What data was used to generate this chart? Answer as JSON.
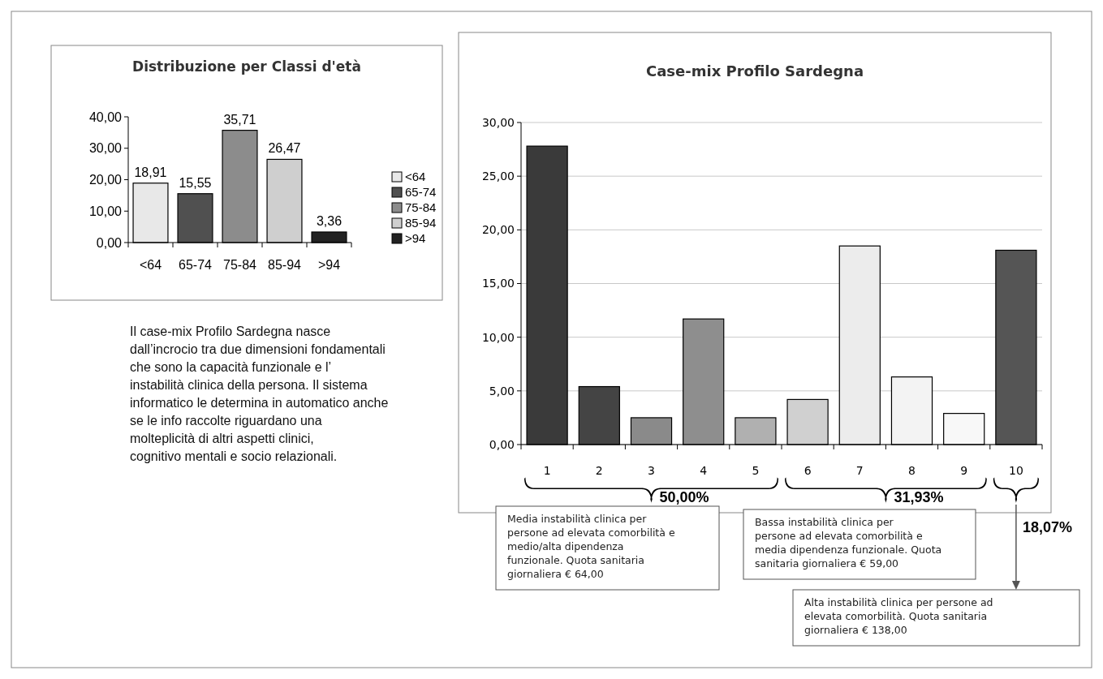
{
  "chart_data": [
    {
      "type": "bar",
      "title": "Distribuzione per Classi d'età",
      "categories": [
        "<64",
        "65-74",
        "75-84",
        "85-94",
        ">94"
      ],
      "series": [
        {
          "name": "<64",
          "color": "#e8e8e8",
          "values": [
            18.91,
            null,
            null,
            null,
            null
          ],
          "value_labels": [
            "18,91",
            null,
            null,
            null,
            null
          ]
        },
        {
          "name": "65-74",
          "color": "#505050",
          "values": [
            null,
            15.55,
            null,
            null,
            null
          ],
          "value_labels": [
            null,
            "15,55",
            null,
            null,
            null
          ]
        },
        {
          "name": "75-84",
          "color": "#8c8c8c",
          "values": [
            null,
            null,
            35.71,
            null,
            null
          ],
          "value_labels": [
            null,
            null,
            "35,71",
            null,
            null
          ]
        },
        {
          "name": "85-94",
          "color": "#cfcfcf",
          "values": [
            null,
            null,
            null,
            26.47,
            null
          ],
          "value_labels": [
            null,
            null,
            null,
            "26,47",
            null
          ]
        },
        {
          "name": ">94",
          "color": "#222222",
          "values": [
            null,
            null,
            null,
            null,
            3.36
          ],
          "value_labels": [
            null,
            null,
            null,
            null,
            "3,36"
          ]
        }
      ],
      "ylim": [
        0,
        40
      ],
      "yticks": [
        {
          "value": 0,
          "label": "0,00"
        },
        {
          "value": 10,
          "label": "10,00"
        },
        {
          "value": 20,
          "label": "20,00"
        },
        {
          "value": 30,
          "label": "30,00"
        },
        {
          "value": 40,
          "label": "40,00"
        }
      ],
      "grid": false,
      "legend": "right"
    },
    {
      "type": "bar",
      "title": "Case-mix Profilo Sardegna",
      "categories": [
        "1",
        "2",
        "3",
        "4",
        "5",
        "6",
        "7",
        "8",
        "9",
        "10"
      ],
      "values": [
        27.8,
        5.4,
        2.5,
        11.7,
        2.5,
        4.2,
        18.5,
        6.3,
        2.9,
        18.1
      ],
      "colors": [
        "#3a3a3a",
        "#444444",
        "#8a8a8a",
        "#8e8e8e",
        "#b0b0b0",
        "#d0d0d0",
        "#ececec",
        "#f3f3f3",
        "#f8f8f8",
        "#555555"
      ],
      "ylim": [
        0,
        30
      ],
      "yticks": [
        {
          "value": 0,
          "label": "0,00"
        },
        {
          "value": 5,
          "label": "5,00"
        },
        {
          "value": 10,
          "label": "10,00"
        },
        {
          "value": 15,
          "label": "15,00"
        },
        {
          "value": 20,
          "label": "20,00"
        },
        {
          "value": 25,
          "label": "25,00"
        },
        {
          "value": 30,
          "label": "30,00"
        }
      ],
      "grid": "y",
      "annotations": [
        "50,00%",
        "31,93%",
        "18,07%",
        "Media instabilità clinica per persone ad elevata comorbilità e medio/alta dipendenza funzionale. Quota sanitaria giornaliera € 64,00",
        "Bassa instabilità clinica per persone ad elevata comorbilità e media dipendenza funzionale. Quota sanitaria giornaliera € 59,00",
        "Alta instabilità clinica per persone ad elevata comorbilità. Quota sanitaria giornaliera € 138,00"
      ]
    },
    {
      "type": "other",
      "annotations": [
        "Il case-mix Profilo Sardegna nasce dall’incrocio tra due dimensioni fondamentali che sono la capacità funzionale e l’ instabilità clinica della persona. Il sistema informatico le determina in automatico anche se le info raccolte riguardano una molteplicità di altri aspetti clinici, cognitivo mentali e socio relazionali."
      ]
    }
  ]
}
